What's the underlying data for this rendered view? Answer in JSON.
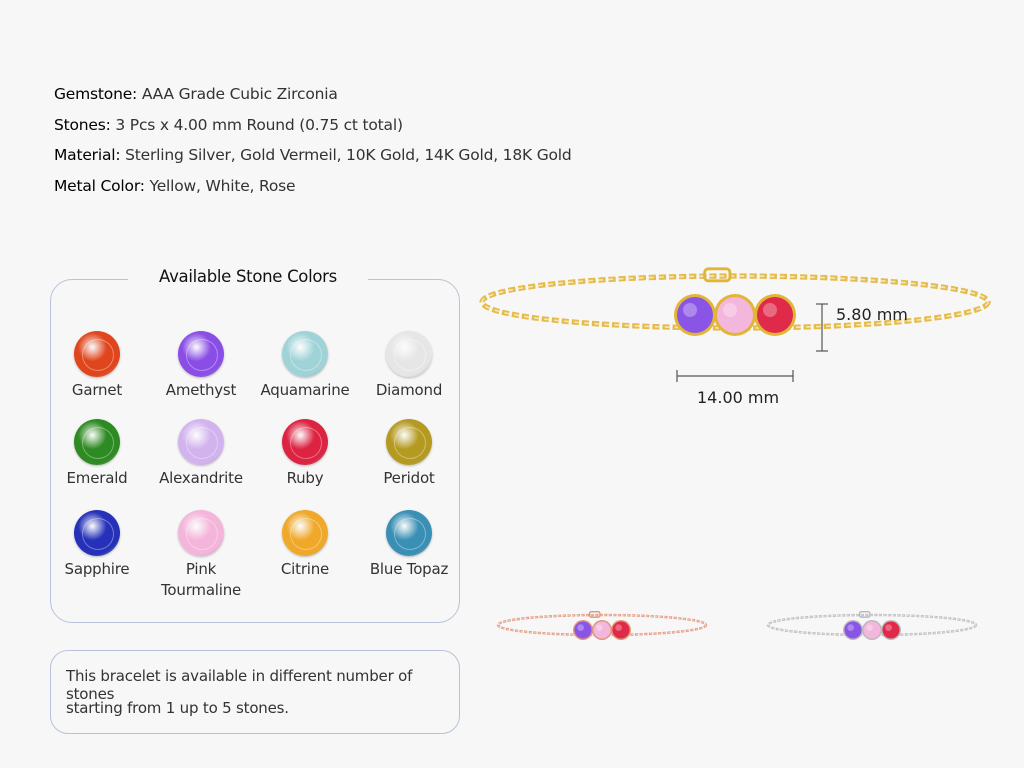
{
  "specs": [
    {
      "label": "Gemstone:",
      "value": "AAA Grade Cubic Zirconia"
    },
    {
      "label": "Stones:",
      "value": "3 Pcs x 4.00 mm Round (0.75 ct total)"
    },
    {
      "label": "Material:",
      "value": "Sterling Silver, Gold Vermeil, 10K Gold, 14K Gold, 18K Gold"
    },
    {
      "label": "Metal Color:",
      "value": "Yellow, White, Rose"
    }
  ],
  "stone_panel": {
    "title": "Available Stone Colors",
    "stones": [
      {
        "name": "Garnet",
        "color": "#e0461e"
      },
      {
        "name": "Amethyst",
        "color": "#8a4ee6"
      },
      {
        "name": "Aquamarine",
        "color": "#9fd3d8"
      },
      {
        "name": "Diamond",
        "color": "#e6e6e6"
      },
      {
        "name": "Emerald",
        "color": "#2e8a22"
      },
      {
        "name": "Alexandrite",
        "color": "#d2b3ee"
      },
      {
        "name": "Ruby",
        "color": "#dc2342"
      },
      {
        "name": "Peridot",
        "color": "#b59a22"
      },
      {
        "name": "Sapphire",
        "color": "#2531b8"
      },
      {
        "name": "Pink Tourmaline",
        "color": "#f4b5da"
      },
      {
        "name": "Citrine",
        "color": "#f0a82a"
      },
      {
        "name": "Blue Topaz",
        "color": "#3a8fb5"
      }
    ]
  },
  "note": {
    "line1": "This bracelet is available in different number of stones",
    "line2": "starting from 1 up to 5 stones."
  },
  "bracelet": {
    "height_label": "5.80 mm",
    "width_label": "14.00 mm",
    "stone_colors": [
      "#8a55e6",
      "#f3b6dc",
      "#e02a4a"
    ],
    "metal_colors": {
      "yellow": "#e2b536",
      "rose": "#e0957a",
      "white": "#b9b9b9"
    }
  }
}
